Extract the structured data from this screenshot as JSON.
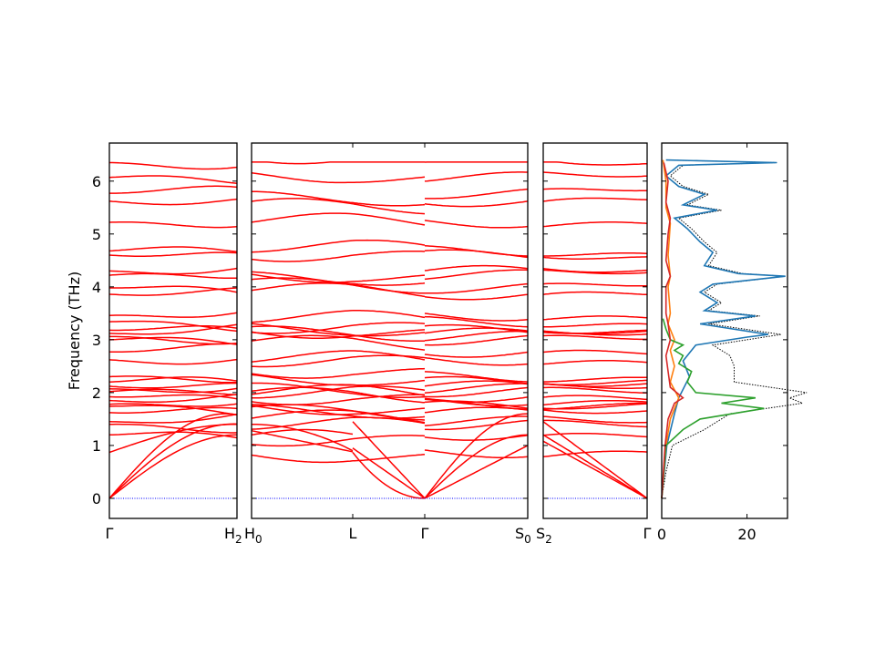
{
  "chart_data": {
    "type": "line",
    "ylabel": "Frequency (THz)",
    "ylim": [
      -0.38,
      6.72
    ],
    "yticks": [
      0,
      1,
      2,
      3,
      4,
      5,
      6
    ],
    "panels": [
      {
        "id": "band-panel-1",
        "ticks": [
          {
            "label": "Γ",
            "pos": 0
          },
          {
            "label": "H",
            "pos": 1
          }
        ]
      },
      {
        "id": "band-panel-2",
        "ticks": [
          {
            "label": "H",
            "pos": 0
          },
          {
            "label": "L",
            "pos": 0.37
          },
          {
            "label": "Γ",
            "pos": 0.63
          },
          {
            "label": "S",
            "pos": 1
          }
        ]
      },
      {
        "id": "band-panel-3",
        "ticks": [
          {
            "label": "S",
            "pos": 0
          },
          {
            "label": "Γ",
            "pos": 1
          }
        ]
      }
    ],
    "segment_end_labels": {
      "H2": "H",
      "H0": "H",
      "S0": "S",
      "S2": "S"
    },
    "subscripts": {
      "H2": "2",
      "H0": "0",
      "S0": "0",
      "S2": "2"
    },
    "band_color": "#ff0000",
    "zero_line_color": "#0000ff",
    "panel1_gamma_freqs": [
      0,
      0,
      0,
      0.87,
      1.2,
      1.4,
      1.45,
      1.62,
      1.74,
      1.78,
      1.85,
      1.92,
      2.02,
      2.07,
      2.12,
      2.2,
      2.3,
      2.62,
      2.77,
      3.0,
      3.06,
      3.12,
      3.18,
      3.34,
      3.46,
      3.86,
      3.98,
      4.22,
      4.3,
      4.6,
      4.68,
      5.22,
      5.62,
      5.77,
      6.07,
      6.35
    ],
    "dos": {
      "xlim": [
        0,
        29.5
      ],
      "xticks": [
        0,
        20
      ],
      "total_color": "#000000",
      "series": [
        {
          "color": "#1f77b4",
          "f": [
            0.0,
            1.0,
            1.6,
            1.9,
            2.3,
            2.6,
            2.9,
            3.05,
            3.1,
            3.3,
            3.45,
            3.55,
            3.7,
            3.9,
            4.05,
            4.2,
            4.25,
            4.4,
            4.65,
            4.85,
            5.1,
            5.3,
            5.45,
            5.55,
            5.75,
            5.9,
            6.1,
            6.3,
            6.35,
            6.4
          ],
          "v": [
            0,
            1.2,
            3.0,
            4.0,
            6.5,
            5.0,
            8.0,
            20.0,
            25.0,
            9.0,
            22.0,
            10.0,
            13.0,
            9.0,
            12.0,
            29.0,
            18.0,
            10.0,
            12.0,
            9.0,
            6.0,
            3.0,
            13.0,
            5.0,
            10.0,
            4.0,
            1.0,
            4.0,
            27.0,
            1.0
          ]
        },
        {
          "color": "#ff7f0e",
          "f": [
            0.0,
            1.0,
            1.5,
            1.9,
            2.2,
            2.5,
            2.8,
            3.0,
            3.3,
            3.5,
            4.0,
            4.2,
            4.6,
            5.2,
            5.5,
            6.0,
            6.4
          ],
          "v": [
            0,
            1.0,
            2.0,
            4.0,
            2.0,
            3.0,
            2.0,
            3.0,
            1.5,
            2.0,
            1.5,
            2.0,
            1.5,
            2.0,
            1.0,
            1.0,
            0.3
          ]
        },
        {
          "color": "#2ca02c",
          "f": [
            0.0,
            1.0,
            1.3,
            1.5,
            1.7,
            1.8,
            1.9,
            2.0,
            2.2,
            2.4,
            2.55,
            2.7,
            2.8,
            2.9,
            3.0,
            3.2,
            3.4
          ],
          "v": [
            0,
            1.0,
            5.0,
            9.0,
            24.0,
            14.0,
            22.0,
            8.0,
            6.0,
            7.0,
            4.0,
            5.0,
            3.0,
            5.0,
            2.0,
            1.0,
            0.3
          ]
        },
        {
          "color": "#d62728",
          "f": [
            0.0,
            1.0,
            1.5,
            1.8,
            1.9,
            2.1,
            2.4,
            2.7,
            3.0,
            3.3,
            3.5,
            4.0,
            4.2,
            4.5,
            5.0,
            5.3,
            5.6,
            6.0,
            6.35
          ],
          "v": [
            0,
            0.8,
            1.5,
            3.0,
            5.0,
            2.0,
            1.5,
            1.0,
            2.0,
            1.5,
            1.0,
            1.0,
            2.0,
            1.0,
            1.5,
            2.0,
            1.0,
            1.5,
            0.5
          ]
        }
      ],
      "total": {
        "f": [
          0.0,
          0.5,
          1.0,
          1.3,
          1.6,
          1.8,
          1.9,
          2.0,
          2.2,
          2.5,
          2.7,
          2.9,
          3.05,
          3.1,
          3.3,
          3.45,
          3.55,
          3.7,
          3.9,
          4.05,
          4.2,
          4.25,
          4.4,
          4.65,
          4.85,
          5.1,
          5.3,
          5.45,
          5.55,
          5.75,
          5.9,
          6.1,
          6.3,
          6.35,
          6.4
        ],
        "v": [
          0,
          1.0,
          2.5,
          10.0,
          16.0,
          33.0,
          30.0,
          34.0,
          17.0,
          17.0,
          16.0,
          12.0,
          24.0,
          28.0,
          11.0,
          23.0,
          11.0,
          14.0,
          10.0,
          13.0,
          29.0,
          19.0,
          11.0,
          13.0,
          10.0,
          7.0,
          4.0,
          14.0,
          6.0,
          11.0,
          5.0,
          2.0,
          5.0,
          27.0,
          1.0
        ]
      }
    }
  }
}
